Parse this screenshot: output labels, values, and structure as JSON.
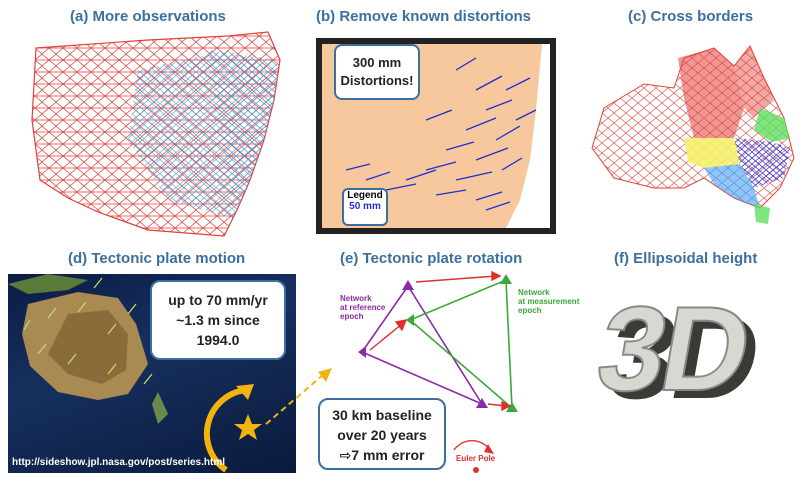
{
  "panels": {
    "a": {
      "title": "(a) More observations"
    },
    "b": {
      "title": "(b) Remove known distortions",
      "callout_line1": "300 mm",
      "callout_line2": "Distortions!",
      "legend_title": "Legend",
      "legend_value": "50 mm"
    },
    "c": {
      "title": "(c) Cross borders"
    },
    "d": {
      "title": "(d) Tectonic plate motion",
      "callout_line1": "up to 70 mm/yr",
      "callout_line2": "~1.3 m since",
      "callout_line3": "1994.0",
      "source_url": "http://sideshow.jpl.nasa.gov/post/series.html"
    },
    "e": {
      "title": "(e) Tectonic plate rotation",
      "network_ref": [
        "Network",
        "at reference",
        "epoch"
      ],
      "network_meas": [
        "Network",
        "at measurement",
        "epoch"
      ],
      "baseline_line1": "30 km baseline",
      "baseline_line2": "over 20 years",
      "baseline_line3": "⇨7 mm error",
      "euler_pole": "Euler Pole"
    },
    "f": {
      "title": "(f) Ellipsoidal height",
      "big_text": "3D"
    }
  },
  "colors": {
    "title": "#3c6f9f",
    "network_ref": "#8a2aa8",
    "network_meas": "#3aa83a",
    "rotation_arrow": "#e0302a",
    "star": "#f2b40c",
    "map_fill": "#f7c79e"
  }
}
